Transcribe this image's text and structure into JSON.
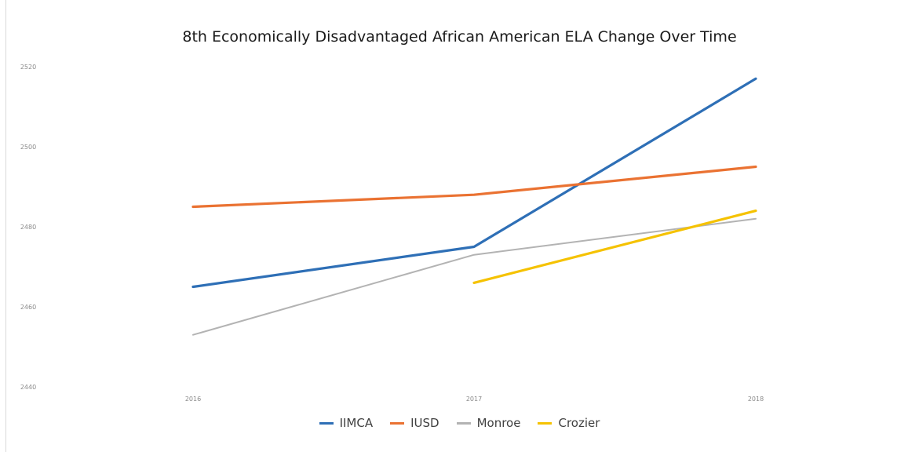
{
  "chart_data": {
    "type": "line",
    "title": "8th Economically Disadvantaged African American ELA Change Over Time",
    "xlabel": "",
    "ylabel": "",
    "categories": [
      "2016",
      "2017",
      "2018"
    ],
    "ylim": [
      2440,
      2520
    ],
    "yticks": [
      "2440",
      "2460",
      "2480",
      "2500",
      "2520"
    ],
    "grid": false,
    "legend_position": "bottom",
    "series": [
      {
        "name": "IIMCA",
        "color": "#2e6fb6",
        "values": [
          2465,
          2475,
          2517
        ]
      },
      {
        "name": "IUSD",
        "color": "#ea7232",
        "values": [
          2485,
          2488,
          2495
        ]
      },
      {
        "name": "Monroe",
        "color": "#b3b3b3",
        "values": [
          2453,
          2473,
          2482
        ]
      },
      {
        "name": "Crozier",
        "color": "#f5c200",
        "values": [
          null,
          2466,
          2484
        ]
      }
    ]
  }
}
